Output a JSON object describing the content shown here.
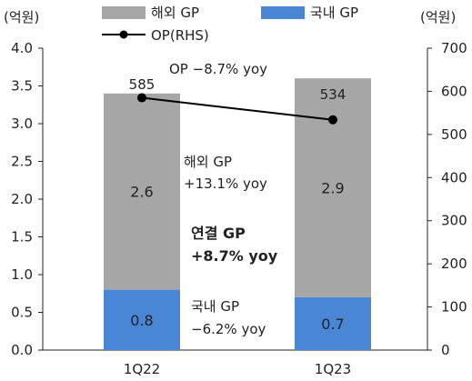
{
  "chart_data": {
    "type": "bar",
    "stacked": true,
    "categories": [
      "1Q22",
      "1Q23"
    ],
    "series": [
      {
        "name": "국내 GP",
        "axis": "left",
        "color": "#4a86d6",
        "values": [
          0.8,
          0.7
        ]
      },
      {
        "name": "해외 GP",
        "axis": "left",
        "color": "#a6a6a6",
        "values": [
          2.6,
          2.9
        ]
      },
      {
        "name": "OP(RHS)",
        "axis": "right",
        "type": "line",
        "color": "#000000",
        "values": [
          585,
          534
        ]
      }
    ],
    "left_axis": {
      "unit": "(억원)",
      "min": 0,
      "max": 4,
      "ticks": [
        "0.0",
        "0.5",
        "1.0",
        "1.5",
        "2.0",
        "2.5",
        "3.0",
        "3.5",
        "4.0"
      ]
    },
    "right_axis": {
      "unit": "(억원)",
      "min": 0,
      "max": 700,
      "ticks": [
        "0",
        "100",
        "200",
        "300",
        "400",
        "500",
        "600",
        "700"
      ]
    },
    "bar_labels": {
      "domestic": [
        "0.8",
        "0.7"
      ],
      "overseas": [
        "2.6",
        "2.9"
      ],
      "op": [
        "585",
        "534"
      ]
    },
    "annotations": {
      "op": "OP −8.7% yoy",
      "overseas_line1": "해외 GP",
      "overseas_line2": "+13.1% yoy",
      "consolidated_line1": "연결 GP",
      "consolidated_line2": "+8.7% yoy",
      "domestic_line1": "국내 GP",
      "domestic_line2": "−6.2% yoy"
    },
    "legend": {
      "position": "top",
      "items": [
        "해외 GP",
        "국내 GP",
        "OP(RHS)"
      ]
    },
    "grid": false
  }
}
